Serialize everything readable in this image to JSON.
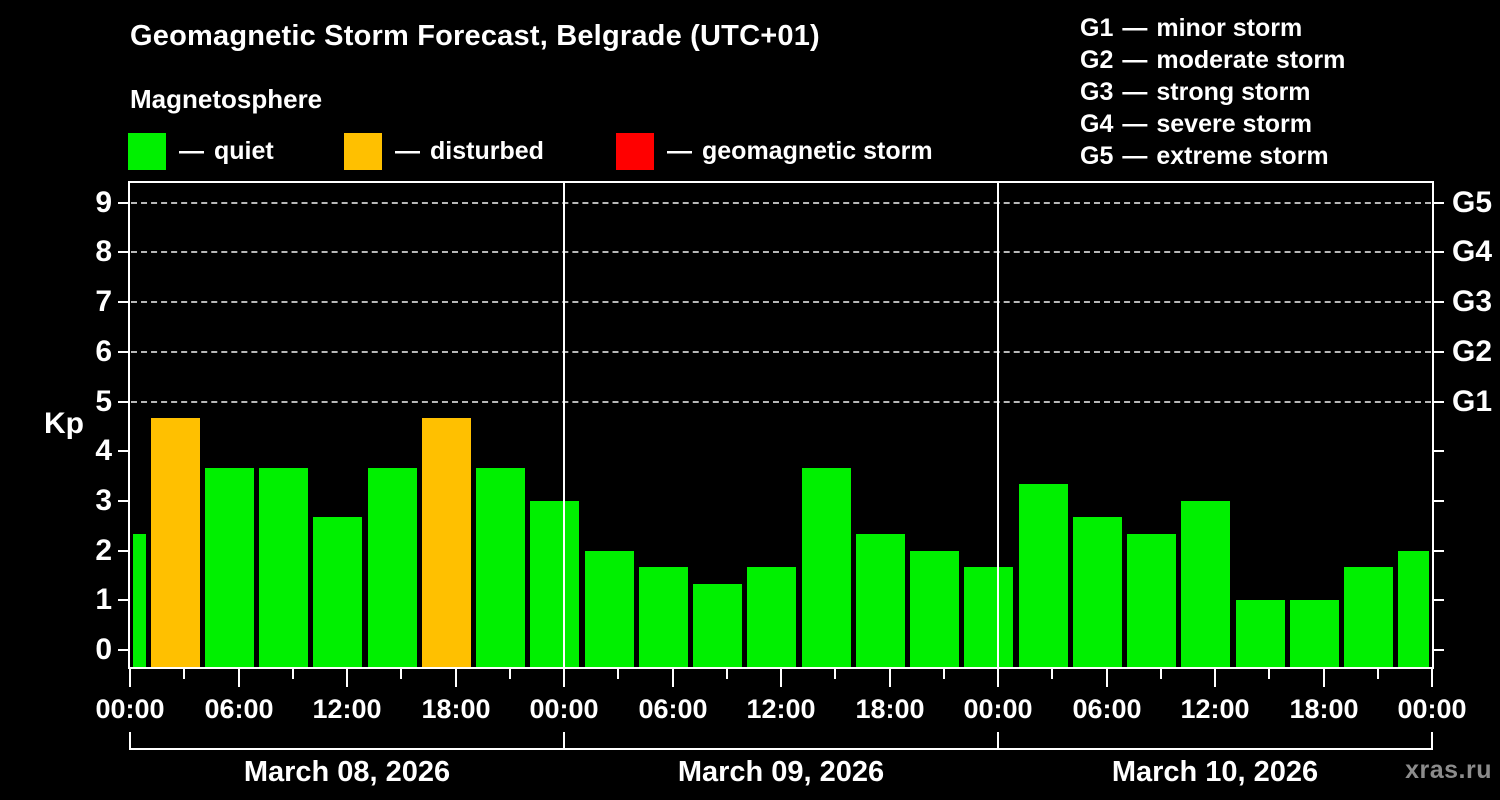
{
  "header": {
    "title": "Geomagnetic Storm Forecast, Belgrade (UTC+01)",
    "subtitle": "Magnetosphere"
  },
  "legend": {
    "dash": "—",
    "items": [
      {
        "label": "quiet",
        "status": "quiet",
        "color": "#00f000"
      },
      {
        "label": "disturbed",
        "status": "disturbed",
        "color": "#ffc000"
      },
      {
        "label": "geomagnetic storm",
        "status": "storm",
        "color": "#ff0000"
      }
    ]
  },
  "g_legend": {
    "dash": "—",
    "items": [
      {
        "code": "G1",
        "label": "minor storm"
      },
      {
        "code": "G2",
        "label": "moderate storm"
      },
      {
        "code": "G3",
        "label": "strong storm"
      },
      {
        "code": "G4",
        "label": "severe storm"
      },
      {
        "code": "G5",
        "label": "extreme storm"
      }
    ]
  },
  "watermark": "xras.ru",
  "chart_data": {
    "type": "bar",
    "title": "Geomagnetic Storm Forecast, Belgrade (UTC+01)",
    "ylabel": "Kp",
    "ylim": [
      0,
      9.4
    ],
    "y_ticks": [
      0,
      1,
      2,
      3,
      4,
      5,
      6,
      7,
      8,
      9
    ],
    "grid": "dashed horizontal lines at Kp 5-9 only",
    "grid_levels_dashed": [
      5,
      6,
      7,
      8,
      9
    ],
    "right_axis_labels": [
      {
        "kp": 5,
        "label": "G1"
      },
      {
        "kp": 6,
        "label": "G2"
      },
      {
        "kp": 7,
        "label": "G3"
      },
      {
        "kp": 8,
        "label": "G4"
      },
      {
        "kp": 9,
        "label": "G5"
      }
    ],
    "x_hours_total": 72,
    "x_minor_tick_every_h": 3,
    "x_major_tick_every_h": 6,
    "x_tick_labels_cycle": [
      "00:00",
      "06:00",
      "12:00",
      "18:00"
    ],
    "days": [
      {
        "label": "March 08, 2026",
        "start_hour": 0,
        "end_hour": 24
      },
      {
        "label": "March 09, 2026",
        "start_hour": 24,
        "end_hour": 48
      },
      {
        "label": "March 10, 2026",
        "start_hour": 48,
        "end_hour": 72
      }
    ],
    "status_colors": {
      "quiet": "#00f000",
      "disturbed": "#ffc000",
      "storm": "#ff0000"
    },
    "bars": [
      {
        "start_hour": 0,
        "duration_hours": 1,
        "kp": 2.33,
        "status": "quiet"
      },
      {
        "start_hour": 1,
        "duration_hours": 3,
        "kp": 4.67,
        "status": "disturbed"
      },
      {
        "start_hour": 4,
        "duration_hours": 3,
        "kp": 3.67,
        "status": "quiet"
      },
      {
        "start_hour": 7,
        "duration_hours": 3,
        "kp": 3.67,
        "status": "quiet"
      },
      {
        "start_hour": 10,
        "duration_hours": 3,
        "kp": 2.67,
        "status": "quiet"
      },
      {
        "start_hour": 13,
        "duration_hours": 3,
        "kp": 3.67,
        "status": "quiet"
      },
      {
        "start_hour": 16,
        "duration_hours": 3,
        "kp": 4.67,
        "status": "disturbed"
      },
      {
        "start_hour": 19,
        "duration_hours": 3,
        "kp": 3.67,
        "status": "quiet"
      },
      {
        "start_hour": 22,
        "duration_hours": 3,
        "kp": 3.0,
        "status": "quiet"
      },
      {
        "start_hour": 25,
        "duration_hours": 3,
        "kp": 2.0,
        "status": "quiet"
      },
      {
        "start_hour": 28,
        "duration_hours": 3,
        "kp": 1.67,
        "status": "quiet"
      },
      {
        "start_hour": 31,
        "duration_hours": 3,
        "kp": 1.33,
        "status": "quiet"
      },
      {
        "start_hour": 34,
        "duration_hours": 3,
        "kp": 1.67,
        "status": "quiet"
      },
      {
        "start_hour": 37,
        "duration_hours": 3,
        "kp": 3.67,
        "status": "quiet"
      },
      {
        "start_hour": 40,
        "duration_hours": 3,
        "kp": 2.33,
        "status": "quiet"
      },
      {
        "start_hour": 43,
        "duration_hours": 3,
        "kp": 2.0,
        "status": "quiet"
      },
      {
        "start_hour": 46,
        "duration_hours": 3,
        "kp": 1.67,
        "status": "quiet"
      },
      {
        "start_hour": 49,
        "duration_hours": 3,
        "kp": 3.33,
        "status": "quiet"
      },
      {
        "start_hour": 52,
        "duration_hours": 3,
        "kp": 2.67,
        "status": "quiet"
      },
      {
        "start_hour": 55,
        "duration_hours": 3,
        "kp": 2.33,
        "status": "quiet"
      },
      {
        "start_hour": 58,
        "duration_hours": 3,
        "kp": 3.0,
        "status": "quiet"
      },
      {
        "start_hour": 61,
        "duration_hours": 3,
        "kp": 1.0,
        "status": "quiet"
      },
      {
        "start_hour": 64,
        "duration_hours": 3,
        "kp": 1.0,
        "status": "quiet"
      },
      {
        "start_hour": 67,
        "duration_hours": 3,
        "kp": 1.67,
        "status": "quiet"
      },
      {
        "start_hour": 70,
        "duration_hours": 2,
        "kp": 2.0,
        "status": "quiet"
      }
    ]
  }
}
